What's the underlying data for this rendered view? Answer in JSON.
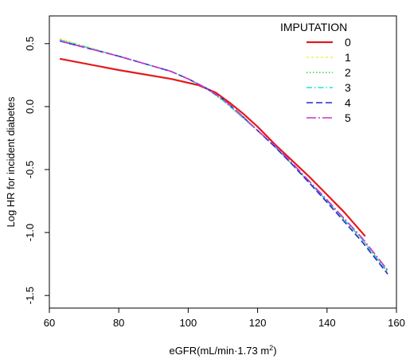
{
  "chart_data": {
    "type": "line",
    "title": "",
    "xlabel_main": "eGFR(mL/min·1.73 m",
    "xlabel_sup": "2",
    "xlabel_close": ")",
    "ylabel": "Log HR for incident diabetes",
    "xlim": [
      60,
      160
    ],
    "ylim": [
      -1.6,
      0.72
    ],
    "x_ticks": [
      60,
      80,
      100,
      120,
      140,
      160
    ],
    "y_ticks": [
      0.5,
      0.0,
      -0.5,
      -1.0,
      -1.5
    ],
    "y_tick_labels": [
      "0.5",
      "0.0",
      "-0.5",
      "-1.0",
      "-1.5"
    ],
    "grid": false,
    "legend": {
      "title": "IMPUTATION",
      "position": "top-right"
    },
    "series": [
      {
        "name": "0",
        "color": "#e31a1c",
        "dash": "",
        "width": 2.2,
        "x": [
          63,
          80,
          95,
          103,
          108,
          112,
          116,
          120,
          125,
          130,
          135,
          140,
          145,
          151
        ],
        "y": [
          0.38,
          0.29,
          0.22,
          0.17,
          0.11,
          0.03,
          -0.06,
          -0.16,
          -0.3,
          -0.43,
          -0.56,
          -0.7,
          -0.84,
          -1.03
        ]
      },
      {
        "name": "1",
        "color": "#f0f050",
        "dash": "3,3",
        "width": 1.6,
        "x": [
          63,
          80,
          95,
          100,
          105,
          110,
          115,
          120,
          125,
          130,
          140,
          150,
          157.5
        ],
        "y": [
          0.54,
          0.4,
          0.28,
          0.22,
          0.15,
          0.05,
          -0.07,
          -0.19,
          -0.32,
          -0.46,
          -0.75,
          -1.05,
          -1.31
        ]
      },
      {
        "name": "2",
        "color": "#33cc33",
        "dash": "1.5,2.5",
        "width": 1.6,
        "x": [
          63,
          80,
          95,
          100,
          105,
          110,
          115,
          120,
          125,
          130,
          140,
          150,
          157.5
        ],
        "y": [
          0.53,
          0.4,
          0.28,
          0.22,
          0.15,
          0.05,
          -0.07,
          -0.19,
          -0.32,
          -0.46,
          -0.75,
          -1.05,
          -1.31
        ]
      },
      {
        "name": "3",
        "color": "#22dddd",
        "dash": "7,3,1.5,3",
        "width": 1.6,
        "x": [
          63,
          80,
          95,
          100,
          105,
          110,
          115,
          120,
          125,
          130,
          140,
          150,
          157.5
        ],
        "y": [
          0.53,
          0.4,
          0.28,
          0.22,
          0.15,
          0.05,
          -0.07,
          -0.19,
          -0.32,
          -0.46,
          -0.75,
          -1.05,
          -1.32
        ]
      },
      {
        "name": "4",
        "color": "#1f2fcf",
        "dash": "8,4",
        "width": 1.6,
        "x": [
          63,
          80,
          95,
          100,
          105,
          110,
          115,
          120,
          125,
          130,
          140,
          150,
          157.5
        ],
        "y": [
          0.52,
          0.4,
          0.28,
          0.22,
          0.15,
          0.06,
          -0.06,
          -0.19,
          -0.32,
          -0.46,
          -0.76,
          -1.07,
          -1.33
        ]
      },
      {
        "name": "5",
        "color": "#cc33cc",
        "dash": "12,3,2,3",
        "width": 1.6,
        "x": [
          63,
          80,
          95,
          100,
          105,
          110,
          115,
          120,
          125,
          130,
          140,
          150,
          157.5
        ],
        "y": [
          0.52,
          0.4,
          0.28,
          0.22,
          0.15,
          0.06,
          -0.06,
          -0.19,
          -0.31,
          -0.45,
          -0.74,
          -1.04,
          -1.3
        ]
      }
    ]
  }
}
